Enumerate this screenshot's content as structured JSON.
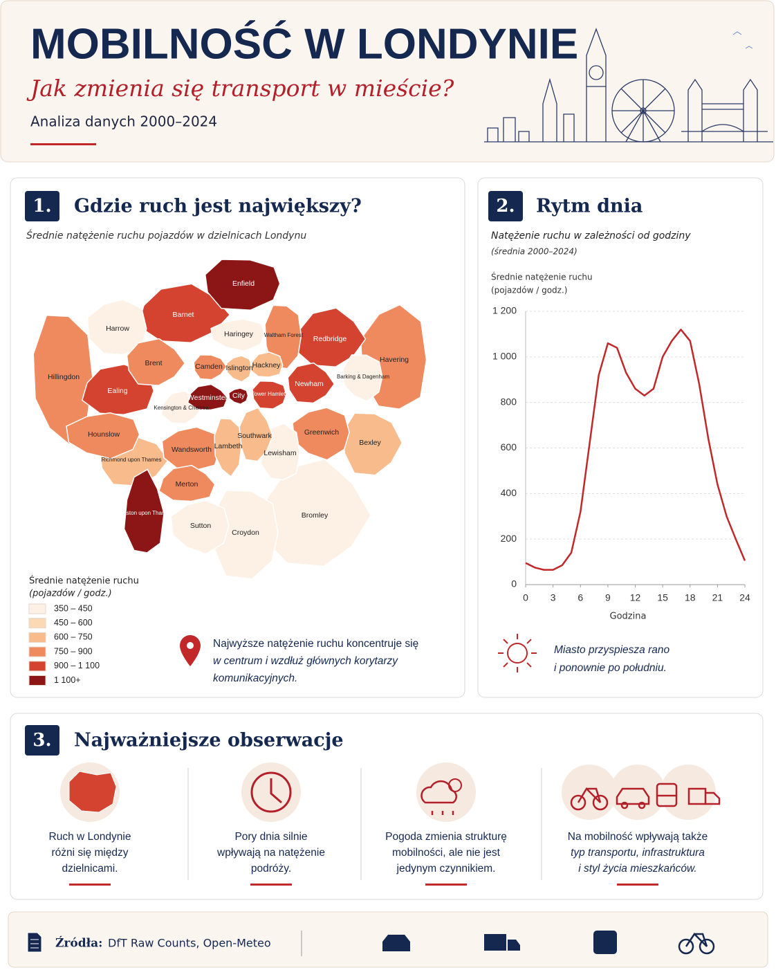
{
  "header": {
    "title": "MOBILNOŚĆ W LONDYNIE",
    "subtitle": "Jak zmienia się transport w mieście?",
    "period": "Analiza danych 2000–2024"
  },
  "map_section": {
    "number": "1.",
    "title": "Gdzie ruch jest największy?",
    "subtitle": "Średnie natężenie ruchu pojazdów w dzielnicach Londynu",
    "legend_title": "Średnie natężenie ruchu",
    "legend_unit": "(pojazdów / godz.)",
    "legend": [
      {
        "label": "350 – 450",
        "color": "#fdf1e6"
      },
      {
        "label": "450 – 600",
        "color": "#fbd9b4"
      },
      {
        "label": "600 – 750",
        "color": "#f7bb8c"
      },
      {
        "label": "750 – 900",
        "color": "#ef8a5f"
      },
      {
        "label": "900 – 1 100",
        "color": "#d4432f"
      },
      {
        "label": "1 100+",
        "color": "#8c1515"
      }
    ],
    "boroughs": [
      {
        "name": "Enfield",
        "color": "#8c1515"
      },
      {
        "name": "Barnet",
        "color": "#d4432f"
      },
      {
        "name": "Harrow",
        "color": "#fdf1e6"
      },
      {
        "name": "Hillingdon",
        "color": "#ef8a5f"
      },
      {
        "name": "Brent",
        "color": "#ef8a5f"
      },
      {
        "name": "Ealing",
        "color": "#d4432f"
      },
      {
        "name": "Hounslow",
        "color": "#ef8a5f"
      },
      {
        "name": "Richmond upon Thames",
        "color": "#f7bb8c"
      },
      {
        "name": "Kingston upon Thames",
        "color": "#8c1515"
      },
      {
        "name": "Haringey",
        "color": "#fdf1e6"
      },
      {
        "name": "Waltham Forest",
        "color": "#ef8a5f"
      },
      {
        "name": "Redbridge",
        "color": "#d4432f"
      },
      {
        "name": "Havering",
        "color": "#ef8a5f"
      },
      {
        "name": "Barking & Dagenham",
        "color": "#fdf1e6"
      },
      {
        "name": "Newham",
        "color": "#d4432f"
      },
      {
        "name": "Hackney",
        "color": "#f7bb8c"
      },
      {
        "name": "Islington",
        "color": "#f7bb8c"
      },
      {
        "name": "Camden",
        "color": "#ef8a5f"
      },
      {
        "name": "Westminster",
        "color": "#8c1515"
      },
      {
        "name": "City",
        "color": "#8c1515"
      },
      {
        "name": "Tower Hamlets",
        "color": "#d4432f"
      },
      {
        "name": "Kensington & Chelsea",
        "color": "#fdf1e6"
      },
      {
        "name": "Wandsworth",
        "color": "#ef8a5f"
      },
      {
        "name": "Lambeth",
        "color": "#f7bb8c"
      },
      {
        "name": "Southwark",
        "color": "#f7bb8c"
      },
      {
        "name": "Lewisham",
        "color": "#fdf1e6"
      },
      {
        "name": "Greenwich",
        "color": "#ef8a5f"
      },
      {
        "name": "Bexley",
        "color": "#f7bb8c"
      },
      {
        "name": "Merton",
        "color": "#ef8a5f"
      },
      {
        "name": "Sutton",
        "color": "#fdf1e6"
      },
      {
        "name": "Croydon",
        "color": "#fdf1e6"
      },
      {
        "name": "Bromley",
        "color": "#fdf1e6"
      }
    ],
    "note": [
      "Najwyższe natężenie ruchu koncentruje się",
      "w centrum i wzdłuż głównych korytarzy",
      "komunikacyjnych."
    ]
  },
  "chart_section": {
    "number": "2.",
    "title": "Rytm dnia",
    "note": [
      "Miasto przyspiesza rano",
      "i ponownie po południu."
    ]
  },
  "chart_data": {
    "type": "line",
    "title": "Natężenie ruchu w zależności od godziny",
    "subtitle": "(średnia 2000–2024)",
    "y_label": "Średnie natężenie ruchu",
    "y_unit": "(pojazdów / godz.)",
    "x_label": "Godzina",
    "x": [
      0,
      1,
      2,
      3,
      4,
      5,
      6,
      7,
      8,
      9,
      10,
      11,
      12,
      13,
      14,
      15,
      16,
      17,
      18,
      19,
      20,
      21,
      22,
      23,
      24
    ],
    "values": [
      95,
      75,
      65,
      65,
      85,
      140,
      320,
      620,
      920,
      1060,
      1040,
      930,
      860,
      830,
      860,
      1000,
      1070,
      1120,
      1070,
      880,
      640,
      440,
      300,
      200,
      105
    ],
    "color": "#c0282a",
    "xlim": [
      0,
      24
    ],
    "xticks": [
      0,
      3,
      6,
      9,
      12,
      15,
      18,
      21,
      24
    ],
    "ylim": [
      0,
      1200
    ],
    "yticks": [
      0,
      200,
      400,
      600,
      800,
      {
        "value": 1000,
        "label": "1 000"
      },
      {
        "value": 1200,
        "label": "1 200"
      }
    ],
    "grid": true
  },
  "observations": {
    "number": "3.",
    "title": "Najważniejsze obserwacje",
    "items": [
      {
        "lines": [
          "Ruch w Londynie",
          "różni się między",
          "dzielnicami."
        ]
      },
      {
        "lines": [
          "Pory dnia silnie",
          "wpływają na natężenie",
          "podróży."
        ]
      },
      {
        "lines": [
          "Pogoda zmienia strukturę",
          "mobilności, ale nie jest",
          "jedynym czynnikiem."
        ]
      },
      {
        "lines": [
          "Na mobilność wpływają także",
          "typ transportu, infrastruktura",
          "i styl życia mieszkańców."
        ]
      }
    ]
  },
  "footer": {
    "label": "Źródła:",
    "sources": "DfT Raw Counts, Open-Meteo"
  }
}
